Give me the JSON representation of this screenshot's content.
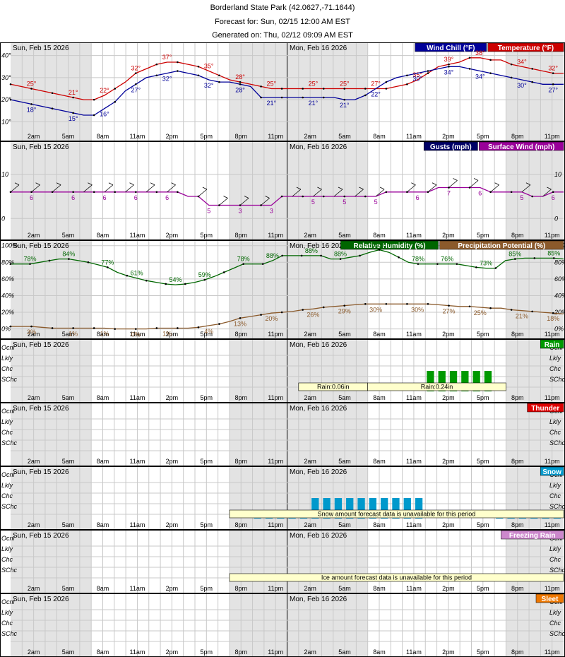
{
  "header": {
    "title": "Borderland State Park (42.0627,-71.1644)",
    "forecast_for": "Forecast for: Sun, 02/15 12:00 AM EST",
    "generated_on": "Generated on: Thu, 02/12 09:09 AM EST"
  },
  "chart_data": {
    "type": "line",
    "date_labels": [
      "Sun, Feb 15 2026",
      "Mon, Feb 16 2026"
    ],
    "x_tick_labels": [
      "2am",
      "5am",
      "8am",
      "11am",
      "2pm",
      "5pm",
      "8pm",
      "11pm",
      "2am",
      "5am",
      "8am",
      "11am",
      "2pm",
      "5pm",
      "8pm",
      "11pm"
    ],
    "colors": {
      "temperature": "#cc0000",
      "wind_chill": "#000099",
      "surface_wind": "#990099",
      "gusts": "#000066",
      "humidity": "#006600",
      "precip_potential": "#8b5a2b",
      "rain": "#009900",
      "thunder": "#dd0000",
      "snow": "#0099cc",
      "freezing_rain": "#cc88cc",
      "sleet": "#ee7700",
      "night_shade": "#e3e3e3",
      "note_fill": "#ffffcc"
    },
    "panels": [
      {
        "id": "temperature",
        "legend": [
          "Wind Chill (°F)",
          "Temperature (°F)"
        ],
        "y_ticks": [
          "10°",
          "20°",
          "30°",
          "40°"
        ],
        "ylim": [
          5,
          45
        ],
        "series": [
          {
            "name": "Temperature (°F)",
            "color_key": "temperature",
            "suffix": "°",
            "values": [
              27,
              26,
              25,
              24,
              23,
              22,
              21,
              20,
              20,
              22,
              25,
              28,
              32,
              34,
              36,
              37,
              37,
              36,
              35,
              33,
              31,
              29,
              28,
              27,
              26,
              25,
              25,
              25,
              25,
              25,
              25,
              25,
              25,
              25,
              25,
              25,
              25,
              26,
              27,
              29,
              32,
              35,
              36,
              37,
              39,
              39,
              38,
              38,
              36,
              35,
              34,
              33,
              32,
              32
            ],
            "labels": [
              {
                "i": 2,
                "t": "25°"
              },
              {
                "i": 5,
                "t": "21°"
              },
              {
                "i": 8,
                "t": "22°"
              },
              {
                "i": 11,
                "t": "32°"
              },
              {
                "i": 14,
                "t": "37°"
              },
              {
                "i": 17,
                "t": "35°"
              },
              {
                "i": 20,
                "t": "28°"
              },
              {
                "i": 23,
                "t": "25°"
              },
              {
                "i": 26,
                "t": "25°"
              },
              {
                "i": 29,
                "t": "25°"
              },
              {
                "i": 32,
                "t": "27°"
              },
              {
                "i": 35,
                "t": "35°"
              },
              {
                "i": 38,
                "t": "39°"
              },
              {
                "i": 41,
                "t": "38°"
              },
              {
                "i": 44,
                "t": "34°"
              },
              {
                "i": 47,
                "t": "32°"
              }
            ]
          },
          {
            "name": "Wind Chill (°F)",
            "color_key": "wind_chill",
            "suffix": "°",
            "values": [
              20,
              19,
              18,
              17,
              16,
              15,
              14,
              13,
              13,
              16,
              19,
              24,
              27,
              30,
              31,
              32,
              33,
              32,
              31,
              29,
              28,
              28,
              27,
              26,
              21,
              21,
              21,
              21,
              21,
              21,
              21,
              21,
              20,
              20,
              22,
              25,
              28,
              30,
              31,
              32,
              33,
              34,
              35,
              35,
              34,
              33,
              32,
              31,
              30,
              29,
              28,
              27,
              27,
              27
            ],
            "labels": [
              {
                "i": 2,
                "t": "18°"
              },
              {
                "i": 5,
                "t": "15°"
              },
              {
                "i": 8,
                "t": "16°"
              },
              {
                "i": 11,
                "t": "27°"
              },
              {
                "i": 14,
                "t": "32°"
              },
              {
                "i": 17,
                "t": "32°"
              },
              {
                "i": 20,
                "t": "28°"
              },
              {
                "i": 23,
                "t": "21°"
              },
              {
                "i": 26,
                "t": "21°"
              },
              {
                "i": 29,
                "t": "21°"
              },
              {
                "i": 32,
                "t": "22°"
              },
              {
                "i": 35,
                "t": "30°"
              },
              {
                "i": 38,
                "t": "34°"
              },
              {
                "i": 41,
                "t": "34°"
              },
              {
                "i": 44,
                "t": "30°"
              },
              {
                "i": 47,
                "t": "27°"
              }
            ]
          }
        ]
      },
      {
        "id": "wind",
        "legend": [
          "Gusts (mph)",
          "Surface Wind (mph)"
        ],
        "y_ticks": [
          "0",
          "10"
        ],
        "ylim": [
          -3,
          17
        ],
        "series": [
          {
            "name": "Surface Wind (mph)",
            "color_key": "surface_wind",
            "values": [
              6,
              6,
              6,
              6,
              6,
              6,
              6,
              6,
              6,
              6,
              6,
              6,
              6,
              6,
              6,
              6,
              6,
              5,
              5,
              3,
              3,
              3,
              3,
              3,
              3,
              3,
              5,
              5,
              5,
              5,
              5,
              5,
              5,
              5,
              5,
              5,
              6,
              6,
              6,
              6,
              6,
              7,
              7,
              7,
              7,
              7,
              6,
              6,
              6,
              6,
              5,
              5,
              6,
              6
            ],
            "labels": [
              {
                "i": 2,
                "t": "6"
              },
              {
                "i": 5,
                "t": "6"
              },
              {
                "i": 8,
                "t": "6"
              },
              {
                "i": 11,
                "t": "6"
              },
              {
                "i": 14,
                "t": "6"
              },
              {
                "i": 17,
                "t": "5"
              },
              {
                "i": 20,
                "t": "3"
              },
              {
                "i": 23,
                "t": "3"
              },
              {
                "i": 26,
                "t": "5"
              },
              {
                "i": 29,
                "t": "5"
              },
              {
                "i": 32,
                "t": "5"
              },
              {
                "i": 35,
                "t": "6"
              },
              {
                "i": 38,
                "t": "7"
              },
              {
                "i": 41,
                "t": "6"
              },
              {
                "i": 44,
                "t": "5"
              },
              {
                "i": 47,
                "t": "6"
              }
            ]
          }
        ]
      },
      {
        "id": "humidity",
        "legend": [
          "Relative Humidity (%)",
          "Precipitation Potential (%)"
        ],
        "y_ticks": [
          "0%",
          "20%",
          "40%",
          "60%",
          "80%",
          "100%"
        ],
        "ylim": [
          -2,
          104
        ],
        "series": [
          {
            "name": "Relative Humidity (%)",
            "color_key": "humidity",
            "suffix": "%",
            "values": [
              78,
              78,
              78,
              80,
              82,
              84,
              84,
              82,
              80,
              77,
              74,
              68,
              64,
              61,
              58,
              56,
              54,
              53,
              54,
              56,
              59,
              63,
              68,
              73,
              78,
              78,
              78,
              82,
              88,
              88,
              88,
              88,
              88,
              84,
              84,
              86,
              88,
              92,
              95,
              92,
              86,
              80,
              78,
              78,
              78,
              78,
              78,
              76,
              74,
              73,
              73,
              82,
              84,
              85,
              85,
              85,
              85,
              84
            ],
            "labels": [
              {
                "i": 2,
                "t": "78%"
              },
              {
                "i": 5,
                "t": "84%"
              },
              {
                "i": 8,
                "t": "77%"
              },
              {
                "i": 11,
                "t": "61%"
              },
              {
                "i": 14,
                "t": "54%"
              },
              {
                "i": 17,
                "t": "59%"
              },
              {
                "i": 20,
                "t": "78%"
              },
              {
                "i": 23,
                "t": "88%"
              },
              {
                "i": 26,
                "t": "88%"
              },
              {
                "i": 29,
                "t": "88%"
              },
              {
                "i": 32,
                "t": "92%"
              },
              {
                "i": 35,
                "t": "78%"
              },
              {
                "i": 38,
                "t": "76%"
              },
              {
                "i": 41,
                "t": "73%"
              },
              {
                "i": 44,
                "t": "85%"
              },
              {
                "i": 47,
                "t": "85%"
              }
            ]
          },
          {
            "name": "Precipitation Potential (%)",
            "color_key": "precip_potential",
            "suffix": "%",
            "values": [
              3,
              3,
              3,
              2,
              1,
              1,
              1,
              1,
              1,
              1,
              0,
              0,
              0,
              0,
              1,
              1,
              1,
              1,
              2,
              4,
              6,
              9,
              13,
              15,
              17,
              19,
              20,
              21,
              23,
              24,
              26,
              27,
              28,
              29,
              30,
              30,
              30,
              30,
              30,
              30,
              30,
              29,
              28,
              27,
              27,
              26,
              25,
              25,
              23,
              22,
              21,
              20,
              19,
              18
            ],
            "labels": [
              {
                "i": 2,
                "t": "3%"
              },
              {
                "i": 5,
                "t": "1%"
              },
              {
                "i": 8,
                "t": "1%"
              },
              {
                "i": 11,
                "t": "0%"
              },
              {
                "i": 14,
                "t": "1%"
              },
              {
                "i": 17,
                "t": "4%"
              },
              {
                "i": 20,
                "t": "13%"
              },
              {
                "i": 23,
                "t": "20%"
              },
              {
                "i": 26,
                "t": "26%"
              },
              {
                "i": 29,
                "t": "29%"
              },
              {
                "i": 32,
                "t": "30%"
              },
              {
                "i": 35,
                "t": "30%"
              },
              {
                "i": 38,
                "t": "27%"
              },
              {
                "i": 41,
                "t": "25%"
              },
              {
                "i": 44,
                "t": "21%"
              },
              {
                "i": 47,
                "t": "18%"
              }
            ]
          }
        ]
      },
      {
        "id": "rain",
        "legend": [
          "Rain"
        ],
        "y_ticks": [
          "SChc",
          "Chc",
          "Lkly",
          "Ocnl"
        ],
        "bars": {
          "category": "Chc",
          "start_hour": 36,
          "count": 6
        },
        "notes": [
          {
            "text": "Rain:0.06in",
            "start_hour": 25,
            "end_hour": 31
          },
          {
            "text": "Rain:0.24in",
            "start_hour": 31,
            "end_hour": 43
          }
        ]
      },
      {
        "id": "thunder",
        "legend": [
          "Thunder"
        ],
        "y_ticks": [
          "SChc",
          "Chc",
          "Lkly",
          "Ocnl"
        ]
      },
      {
        "id": "snow",
        "legend": [
          "Snow"
        ],
        "y_ticks": [
          "SChc",
          "Chc",
          "Lkly",
          "Ocnl"
        ],
        "bars_low": {
          "category": "SChc",
          "start_hour": 21,
          "count": 5
        },
        "bars": {
          "category": "Chc",
          "start_hour": 26,
          "count": 10
        },
        "bars_tail": {
          "category": "SChc",
          "start_hour": 42,
          "count": 6
        },
        "notes": [
          {
            "text": "Snow amount forecast data is unavailable for this period",
            "start_hour": 19,
            "end_hour": 48
          }
        ]
      },
      {
        "id": "freezing_rain",
        "legend": [
          "Freezing Rain"
        ],
        "y_ticks": [
          "SChc",
          "Chc",
          "Lkly",
          "Ocnl"
        ],
        "notes": [
          {
            "text": "Ice amount forecast data is unavailable for this period",
            "start_hour": 19,
            "end_hour": 48
          }
        ]
      },
      {
        "id": "sleet",
        "legend": [
          "Sleet"
        ],
        "y_ticks": [
          "SChc",
          "Chc",
          "Lkly",
          "Ocnl"
        ]
      }
    ]
  }
}
